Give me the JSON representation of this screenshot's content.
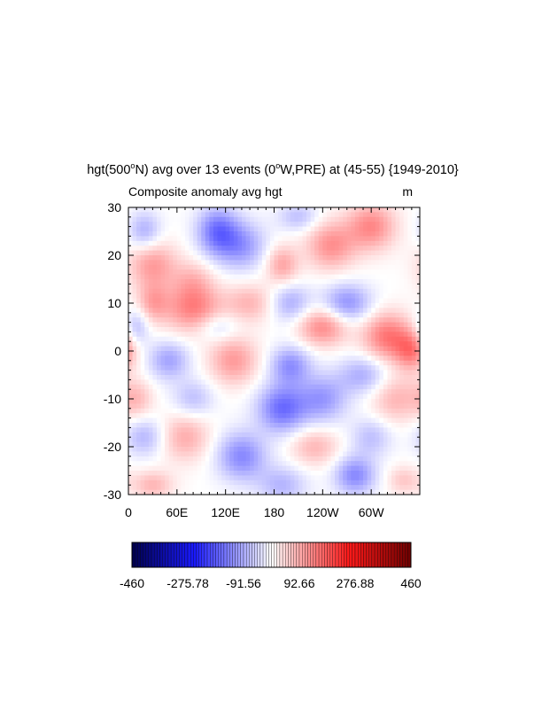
{
  "chart_data": {
    "type": "heatmap",
    "title": {
      "pre": "hgt(500",
      "sup1": "o",
      "mid1": "N) avg over 13 events (0",
      "sup2": "o",
      "post": "W,PRE) at (45-55) {1949-2010}"
    },
    "subtitle_left": "Composite anomaly avg hgt",
    "subtitle_right": "m",
    "x_tick_labels": [
      "0",
      "60E",
      "120E",
      "180",
      "120W",
      "60W"
    ],
    "x_tick_longitudes": [
      0,
      60,
      120,
      180,
      240,
      300
    ],
    "xlim": [
      0,
      360
    ],
    "y_tick_labels": [
      "30",
      "20",
      "10",
      "0",
      "-10",
      "-20",
      "-30"
    ],
    "y_tick_values": [
      30,
      20,
      10,
      0,
      -10,
      -20,
      -30
    ],
    "ylim": [
      -30,
      30
    ],
    "colorbar": {
      "min": -460,
      "max": 460,
      "labels": [
        "-460",
        "-275.78",
        "-91.56",
        "92.66",
        "276.88",
        "460"
      ],
      "low_color": "#00004c",
      "mid_color": "#ffffff",
      "high_color": "#6e0000",
      "blue_color": "#1a1aff",
      "red_color": "#ff1a1a"
    },
    "blobs": [
      {
        "lon": 110,
        "lat": 25,
        "value": -150,
        "slon": 25,
        "slat": 5
      },
      {
        "lon": 20,
        "lat": 25,
        "value": -90,
        "slon": 20,
        "slat": 4
      },
      {
        "lon": 140,
        "lat": 22,
        "value": -110,
        "slon": 30,
        "slat": 5
      },
      {
        "lon": 210,
        "lat": 28,
        "value": -70,
        "slon": 25,
        "slat": 3
      },
      {
        "lon": 300,
        "lat": 26,
        "value": 130,
        "slon": 30,
        "slat": 5
      },
      {
        "lon": 250,
        "lat": 22,
        "value": 120,
        "slon": 30,
        "slat": 5
      },
      {
        "lon": 30,
        "lat": 18,
        "value": 110,
        "slon": 30,
        "slat": 5
      },
      {
        "lon": 190,
        "lat": 18,
        "value": 100,
        "slon": 20,
        "slat": 4
      },
      {
        "lon": 80,
        "lat": 15,
        "value": 60,
        "slon": 25,
        "slat": 4
      },
      {
        "lon": 30,
        "lat": 10,
        "value": 90,
        "slon": 20,
        "slat": 4
      },
      {
        "lon": 80,
        "lat": 9,
        "value": 140,
        "slon": 35,
        "slat": 5
      },
      {
        "lon": 150,
        "lat": 10,
        "value": 80,
        "slon": 30,
        "slat": 4
      },
      {
        "lon": 200,
        "lat": 10,
        "value": -90,
        "slon": 25,
        "slat": 4
      },
      {
        "lon": 270,
        "lat": 10,
        "value": -120,
        "slon": 30,
        "slat": 4
      },
      {
        "lon": 240,
        "lat": 5,
        "value": 130,
        "slon": 30,
        "slat": 4
      },
      {
        "lon": 320,
        "lat": 3,
        "value": 150,
        "slon": 30,
        "slat": 5
      },
      {
        "lon": 350,
        "lat": 0,
        "value": 130,
        "slon": 20,
        "slat": 4
      },
      {
        "lon": 10,
        "lat": 5,
        "value": -80,
        "slon": 15,
        "slat": 4
      },
      {
        "lon": 110,
        "lat": 5,
        "value": -60,
        "slon": 25,
        "slat": 3
      },
      {
        "lon": 50,
        "lat": -2,
        "value": -100,
        "slon": 25,
        "slat": 4
      },
      {
        "lon": 130,
        "lat": -2,
        "value": 110,
        "slon": 30,
        "slat": 5
      },
      {
        "lon": 200,
        "lat": -3,
        "value": -120,
        "slon": 25,
        "slat": 4
      },
      {
        "lon": 290,
        "lat": -5,
        "value": -90,
        "slon": 30,
        "slat": 4
      },
      {
        "lon": 10,
        "lat": -10,
        "value": 70,
        "slon": 20,
        "slat": 4
      },
      {
        "lon": 80,
        "lat": -10,
        "value": -70,
        "slon": 25,
        "slat": 4
      },
      {
        "lon": 190,
        "lat": -12,
        "value": -160,
        "slon": 30,
        "slat": 5
      },
      {
        "lon": 240,
        "lat": -10,
        "value": -110,
        "slon": 30,
        "slat": 5
      },
      {
        "lon": 330,
        "lat": -10,
        "value": 80,
        "slon": 30,
        "slat": 5
      },
      {
        "lon": 20,
        "lat": -18,
        "value": -80,
        "slon": 25,
        "slat": 4
      },
      {
        "lon": 70,
        "lat": -18,
        "value": 90,
        "slon": 30,
        "slat": 5
      },
      {
        "lon": 230,
        "lat": -20,
        "value": 80,
        "slon": 30,
        "slat": 4
      },
      {
        "lon": 300,
        "lat": -18,
        "value": -70,
        "slon": 25,
        "slat": 4
      },
      {
        "lon": 140,
        "lat": -22,
        "value": -130,
        "slon": 30,
        "slat": 5
      },
      {
        "lon": 190,
        "lat": -28,
        "value": -80,
        "slon": 30,
        "slat": 4
      },
      {
        "lon": 280,
        "lat": -26,
        "value": -130,
        "slon": 25,
        "slat": 4
      },
      {
        "lon": 30,
        "lat": -28,
        "value": 80,
        "slon": 25,
        "slat": 3
      },
      {
        "lon": 340,
        "lat": -27,
        "value": 60,
        "slon": 20,
        "slat": 3
      }
    ]
  }
}
